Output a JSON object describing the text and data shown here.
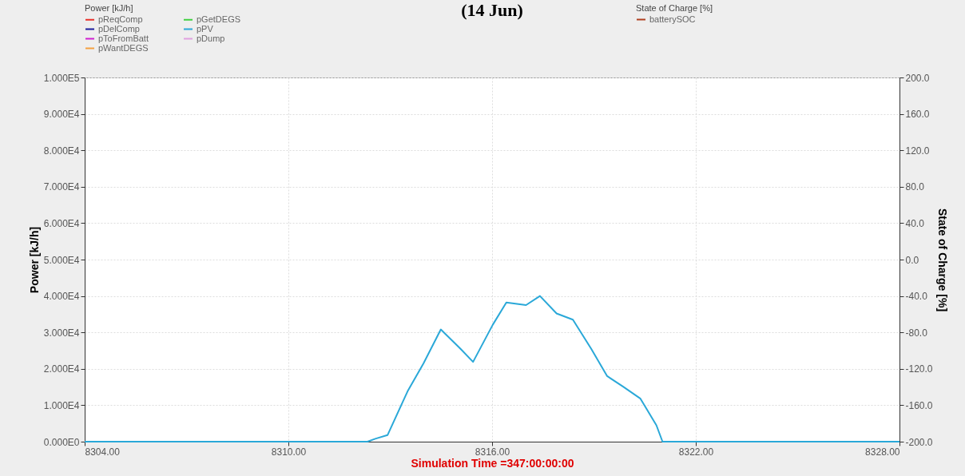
{
  "chart_data": {
    "type": "line",
    "title": "(14 Jun)",
    "xlabel": "Simulation Time =347:00:00:00",
    "ylabel": "Power [kJ/h]",
    "y2label": "State of Charge [%]",
    "legend_title": "Power [kJ/h]",
    "xlim": [
      8304,
      8328
    ],
    "xticks": [
      {
        "value": 8304,
        "label": "8304.00"
      },
      {
        "value": 8310,
        "label": "8310.00"
      },
      {
        "value": 8316,
        "label": "8316.00"
      },
      {
        "value": 8322,
        "label": "8322.00"
      },
      {
        "value": 8328,
        "label": "8328.00"
      }
    ],
    "ylim": [
      0,
      100000
    ],
    "yticks": [
      {
        "value": 0,
        "label": "0.000E0"
      },
      {
        "value": 10000,
        "label": "1.000E4"
      },
      {
        "value": 20000,
        "label": "2.000E4"
      },
      {
        "value": 30000,
        "label": "3.000E4"
      },
      {
        "value": 40000,
        "label": "4.000E4"
      },
      {
        "value": 50000,
        "label": "5.000E4"
      },
      {
        "value": 60000,
        "label": "6.000E4"
      },
      {
        "value": 70000,
        "label": "7.000E4"
      },
      {
        "value": 80000,
        "label": "8.000E4"
      },
      {
        "value": 90000,
        "label": "9.000E4"
      },
      {
        "value": 100000,
        "label": "1.000E5"
      }
    ],
    "y2lim": [
      -200,
      200
    ],
    "y2ticks": [
      {
        "value": -200,
        "label": "-200.0"
      },
      {
        "value": -160,
        "label": "-160.0"
      },
      {
        "value": -120,
        "label": "-120.0"
      },
      {
        "value": -80,
        "label": "-80.0"
      },
      {
        "value": -40,
        "label": "-40.0"
      },
      {
        "value": 0,
        "label": "0.0"
      },
      {
        "value": 40,
        "label": "40.0"
      },
      {
        "value": 80,
        "label": "80.0"
      },
      {
        "value": 120,
        "label": "120.0"
      },
      {
        "value": 160,
        "label": "160.0"
      },
      {
        "value": 200,
        "label": "200.0"
      }
    ],
    "grid": true,
    "legend": "top",
    "marker": "none",
    "line_style": "solid",
    "series": [
      {
        "name": "pReqComp",
        "color": "#e8302a",
        "values": [
          null
        ]
      },
      {
        "name": "pDelComp",
        "color": "#1c1c9c",
        "values": [
          null
        ]
      },
      {
        "name": "pToFromBatt",
        "color": "#d020d0",
        "values": [
          null
        ]
      },
      {
        "name": "pWantDEGS",
        "color": "#f5a040",
        "values": [
          null
        ]
      },
      {
        "name": "pGetDEGS",
        "color": "#40d040",
        "values": [
          null
        ]
      },
      {
        "name": "pPV",
        "color": "#2aa8d8",
        "x": [
          8304,
          8312.33,
          8312.56,
          8312.92,
          8313.51,
          8313.98,
          8314.49,
          8315.07,
          8315.44,
          8316.02,
          8316.42,
          8317.0,
          8317.41,
          8317.9,
          8318.38,
          8318.92,
          8319.39,
          8319.86,
          8320.37,
          8320.84,
          8321.02,
          8328
        ],
        "values": [
          0,
          0,
          800,
          1800,
          13800,
          21500,
          30800,
          25500,
          21900,
          32100,
          38200,
          37500,
          40000,
          35200,
          33500,
          25500,
          18000,
          15100,
          11800,
          4500,
          0,
          0
        ]
      },
      {
        "name": "pDump",
        "color": "#e0a0e0",
        "values": [
          null
        ]
      },
      {
        "name": "batterySOC",
        "color": "#b04020",
        "axis": "y2",
        "values": [
          null
        ]
      }
    ]
  }
}
